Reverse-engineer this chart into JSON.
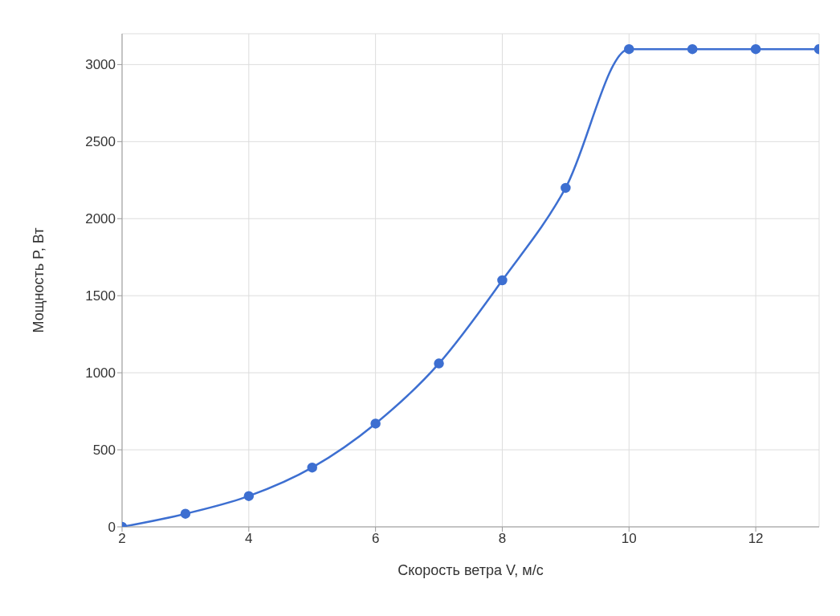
{
  "chart_data": {
    "type": "line",
    "xlabel": "Скорость ветра V, м/с",
    "ylabel": "Мощность P, Вт",
    "x": [
      2,
      3,
      4,
      5,
      6,
      7,
      8,
      9,
      10,
      11,
      12,
      13
    ],
    "series": [
      {
        "color": "#3d6fd1",
        "values": [
          0,
          85,
          200,
          385,
          670,
          1060,
          1600,
          2200,
          3100,
          3100,
          3100,
          3100
        ]
      }
    ],
    "xlim": [
      2,
      13
    ],
    "xticks": [
      2,
      4,
      6,
      8,
      10,
      12
    ],
    "ylim": [
      0,
      3200
    ],
    "yticks": [
      0,
      500,
      1000,
      1500,
      2000,
      2500,
      3000
    ],
    "grid": true,
    "legend": false,
    "marker": "circle",
    "line_style": "solid"
  }
}
